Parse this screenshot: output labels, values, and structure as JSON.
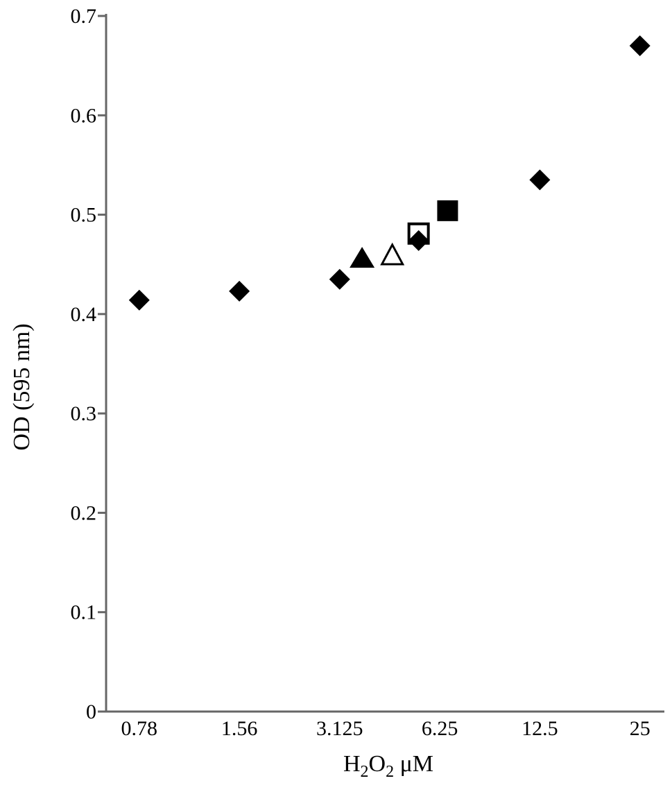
{
  "chart_data": {
    "type": "scatter",
    "title": "",
    "xlabel": {
      "base": "H",
      "sub1": "2",
      "mid": "O",
      "sub2": "2",
      "unit": " μM"
    },
    "ylabel": "OD (595 nm)",
    "x_scale": "log2",
    "x_ticks": [
      0.78,
      1.56,
      3.125,
      6.25,
      12.5,
      25
    ],
    "x_tick_labels": [
      "0.78",
      "1.56",
      "3.125",
      "6.25",
      "12.5",
      "25"
    ],
    "xlim": [
      0.62,
      28.5
    ],
    "ylim": [
      0,
      0.7
    ],
    "y_ticks": [
      0,
      0.1,
      0.2,
      0.3,
      0.4,
      0.5,
      0.6,
      0.7
    ],
    "y_tick_labels": [
      "0",
      "0.1",
      "0.2",
      "0.3",
      "0.4",
      "0.5",
      "0.6",
      "0.7"
    ],
    "grid": false,
    "legend": "none",
    "series": [
      {
        "marker": "filled-diamond",
        "color": "#000000",
        "points": [
          {
            "x": 0.78,
            "y": 0.414
          },
          {
            "x": 1.56,
            "y": 0.423
          },
          {
            "x": 3.125,
            "y": 0.435
          },
          {
            "x": 5.4,
            "y": 0.474
          },
          {
            "x": 12.5,
            "y": 0.535
          },
          {
            "x": 25,
            "y": 0.67
          }
        ]
      },
      {
        "marker": "filled-triangle",
        "color": "#000000",
        "points": [
          {
            "x": 3.65,
            "y": 0.455
          }
        ]
      },
      {
        "marker": "open-triangle",
        "color": "#000000",
        "points": [
          {
            "x": 4.5,
            "y": 0.458
          }
        ]
      },
      {
        "marker": "open-square",
        "color": "#000000",
        "points": [
          {
            "x": 5.4,
            "y": 0.481
          }
        ]
      },
      {
        "marker": "filled-square",
        "color": "#000000",
        "points": [
          {
            "x": 6.6,
            "y": 0.504
          }
        ]
      }
    ]
  }
}
